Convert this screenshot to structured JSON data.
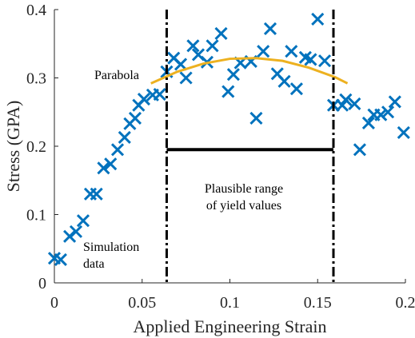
{
  "chart_data": {
    "type": "scatter",
    "xlabel": "Applied Engineering Strain",
    "ylabel": "Stress (GPA)",
    "xlim": [
      0,
      0.2
    ],
    "ylim": [
      0,
      0.4
    ],
    "xticks": [
      0,
      0.05,
      0.1,
      0.15,
      0.2
    ],
    "yticks": [
      0,
      0.1,
      0.2,
      0.3,
      0.4
    ],
    "series": [
      {
        "type": "scatter",
        "color": "#0072bd",
        "x": [
          0.0,
          0.0036,
          0.0087,
          0.0123,
          0.0164,
          0.0205,
          0.024,
          0.028,
          0.032,
          0.036,
          0.04,
          0.043,
          0.046,
          0.048,
          0.051,
          0.056,
          0.06,
          0.064,
          0.068,
          0.072,
          0.075,
          0.079,
          0.082,
          0.087,
          0.09,
          0.095,
          0.099,
          0.102,
          0.106,
          0.112,
          0.115,
          0.119,
          0.123,
          0.127,
          0.131,
          0.135,
          0.138,
          0.143,
          0.146,
          0.15,
          0.154,
          0.159,
          0.164,
          0.166,
          0.171,
          0.174,
          0.179,
          0.182,
          0.186,
          0.19,
          0.194,
          0.199
        ],
        "values": [
          0.036,
          0.034,
          0.068,
          0.075,
          0.091,
          0.13,
          0.13,
          0.168,
          0.174,
          0.195,
          0.213,
          0.233,
          0.241,
          0.26,
          0.269,
          0.275,
          0.276,
          0.309,
          0.329,
          0.32,
          0.3,
          0.347,
          0.334,
          0.323,
          0.347,
          0.365,
          0.28,
          0.305,
          0.322,
          0.324,
          0.241,
          0.339,
          0.372,
          0.306,
          0.295,
          0.339,
          0.284,
          0.33,
          0.327,
          0.386,
          0.325,
          0.26,
          0.26,
          0.268,
          0.262,
          0.195,
          0.234,
          0.246,
          0.246,
          0.25,
          0.265,
          0.22
        ]
      },
      {
        "type": "line",
        "color": "#edb120",
        "x": [
          0.055,
          0.07,
          0.085,
          0.1,
          0.115,
          0.13,
          0.145,
          0.16,
          0.167
        ],
        "values": [
          0.292,
          0.309,
          0.321,
          0.328,
          0.329,
          0.325,
          0.315,
          0.301,
          0.292
        ]
      }
    ],
    "vlines": [
      0.064,
      0.159
    ],
    "hline": {
      "x": [
        0.064,
        0.159
      ],
      "y": 0.195
    },
    "annotations": [
      [
        "Parabola"
      ],
      [
        "Plausible range",
        "of yield values"
      ],
      [
        "Simulation",
        "data"
      ]
    ]
  }
}
